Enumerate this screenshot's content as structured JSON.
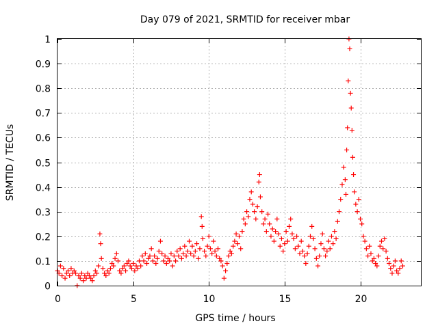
{
  "chart_data": {
    "type": "scatter",
    "title": "Day 079 of 2021, SRMTID for receiver mbar",
    "xlabel": "GPS time / hours",
    "ylabel": "SRMTID / TECUs",
    "xlim": [
      0,
      24
    ],
    "ylim": [
      0,
      1
    ],
    "xticks": [
      0,
      5,
      10,
      15,
      20
    ],
    "yticks": [
      0,
      0.1,
      0.2,
      0.3,
      0.4,
      0.5,
      0.6,
      0.7,
      0.8,
      0.9,
      1
    ],
    "grid": true,
    "marker": "+",
    "color": "#ff0000",
    "series": [
      {
        "name": "SRMTID",
        "points": [
          [
            0.0,
            0.06
          ],
          [
            0.1,
            0.05
          ],
          [
            0.2,
            0.08
          ],
          [
            0.3,
            0.04
          ],
          [
            0.4,
            0.07
          ],
          [
            0.5,
            0.03
          ],
          [
            0.6,
            0.05
          ],
          [
            0.7,
            0.06
          ],
          [
            0.8,
            0.04
          ],
          [
            0.9,
            0.07
          ],
          [
            1.0,
            0.05
          ],
          [
            1.1,
            0.06
          ],
          [
            1.2,
            0.05
          ],
          [
            1.3,
            0.0
          ],
          [
            1.4,
            0.04
          ],
          [
            1.5,
            0.03
          ],
          [
            1.6,
            0.05
          ],
          [
            1.7,
            0.02
          ],
          [
            1.8,
            0.04
          ],
          [
            1.9,
            0.03
          ],
          [
            2.0,
            0.05
          ],
          [
            2.1,
            0.04
          ],
          [
            2.2,
            0.03
          ],
          [
            2.3,
            0.02
          ],
          [
            2.4,
            0.04
          ],
          [
            2.5,
            0.06
          ],
          [
            2.6,
            0.05
          ],
          [
            2.7,
            0.08
          ],
          [
            2.8,
            0.21
          ],
          [
            2.85,
            0.17
          ],
          [
            2.9,
            0.11
          ],
          [
            3.0,
            0.07
          ],
          [
            3.1,
            0.05
          ],
          [
            3.2,
            0.04
          ],
          [
            3.3,
            0.06
          ],
          [
            3.4,
            0.05
          ],
          [
            3.5,
            0.07
          ],
          [
            3.6,
            0.09
          ],
          [
            3.7,
            0.08
          ],
          [
            3.8,
            0.11
          ],
          [
            3.9,
            0.13
          ],
          [
            4.0,
            0.1
          ],
          [
            4.1,
            0.06
          ],
          [
            4.2,
            0.05
          ],
          [
            4.3,
            0.07
          ],
          [
            4.4,
            0.08
          ],
          [
            4.5,
            0.06
          ],
          [
            4.6,
            0.09
          ],
          [
            4.7,
            0.1
          ],
          [
            4.8,
            0.08
          ],
          [
            4.9,
            0.07
          ],
          [
            5.0,
            0.09
          ],
          [
            5.1,
            0.06
          ],
          [
            5.2,
            0.08
          ],
          [
            5.3,
            0.07
          ],
          [
            5.4,
            0.1
          ],
          [
            5.5,
            0.08
          ],
          [
            5.6,
            0.12
          ],
          [
            5.7,
            0.1
          ],
          [
            5.8,
            0.13
          ],
          [
            5.9,
            0.09
          ],
          [
            6.0,
            0.11
          ],
          [
            6.1,
            0.12
          ],
          [
            6.2,
            0.15
          ],
          [
            6.3,
            0.1
          ],
          [
            6.4,
            0.12
          ],
          [
            6.5,
            0.09
          ],
          [
            6.6,
            0.11
          ],
          [
            6.7,
            0.14
          ],
          [
            6.8,
            0.18
          ],
          [
            6.9,
            0.13
          ],
          [
            7.0,
            0.1
          ],
          [
            7.1,
            0.12
          ],
          [
            7.2,
            0.09
          ],
          [
            7.3,
            0.11
          ],
          [
            7.4,
            0.1
          ],
          [
            7.5,
            0.13
          ],
          [
            7.6,
            0.08
          ],
          [
            7.7,
            0.12
          ],
          [
            7.8,
            0.1
          ],
          [
            7.9,
            0.14
          ],
          [
            8.0,
            0.12
          ],
          [
            8.1,
            0.15
          ],
          [
            8.2,
            0.11
          ],
          [
            8.3,
            0.13
          ],
          [
            8.4,
            0.16
          ],
          [
            8.5,
            0.12
          ],
          [
            8.6,
            0.14
          ],
          [
            8.7,
            0.18
          ],
          [
            8.8,
            0.13
          ],
          [
            8.9,
            0.16
          ],
          [
            9.0,
            0.12
          ],
          [
            9.1,
            0.14
          ],
          [
            9.2,
            0.17
          ],
          [
            9.3,
            0.11
          ],
          [
            9.4,
            0.15
          ],
          [
            9.5,
            0.28
          ],
          [
            9.55,
            0.24
          ],
          [
            9.6,
            0.19
          ],
          [
            9.7,
            0.14
          ],
          [
            9.8,
            0.12
          ],
          [
            9.9,
            0.16
          ],
          [
            10.0,
            0.2
          ],
          [
            10.1,
            0.15
          ],
          [
            10.2,
            0.13
          ],
          [
            10.3,
            0.18
          ],
          [
            10.4,
            0.14
          ],
          [
            10.5,
            0.12
          ],
          [
            10.6,
            0.15
          ],
          [
            10.7,
            0.11
          ],
          [
            10.8,
            0.1
          ],
          [
            10.9,
            0.08
          ],
          [
            11.0,
            0.03
          ],
          [
            11.1,
            0.06
          ],
          [
            11.2,
            0.09
          ],
          [
            11.3,
            0.12
          ],
          [
            11.4,
            0.14
          ],
          [
            11.5,
            0.13
          ],
          [
            11.6,
            0.16
          ],
          [
            11.7,
            0.18
          ],
          [
            11.8,
            0.21
          ],
          [
            11.9,
            0.17
          ],
          [
            12.0,
            0.2
          ],
          [
            12.1,
            0.15
          ],
          [
            12.2,
            0.22
          ],
          [
            12.3,
            0.27
          ],
          [
            12.4,
            0.25
          ],
          [
            12.5,
            0.3
          ],
          [
            12.6,
            0.28
          ],
          [
            12.7,
            0.35
          ],
          [
            12.8,
            0.38
          ],
          [
            12.9,
            0.33
          ],
          [
            13.0,
            0.3
          ],
          [
            13.1,
            0.27
          ],
          [
            13.2,
            0.32
          ],
          [
            13.3,
            0.42
          ],
          [
            13.35,
            0.45
          ],
          [
            13.4,
            0.36
          ],
          [
            13.5,
            0.3
          ],
          [
            13.6,
            0.25
          ],
          [
            13.7,
            0.27
          ],
          [
            13.8,
            0.22
          ],
          [
            13.9,
            0.29
          ],
          [
            14.0,
            0.25
          ],
          [
            14.1,
            0.2
          ],
          [
            14.2,
            0.23
          ],
          [
            14.3,
            0.18
          ],
          [
            14.4,
            0.22
          ],
          [
            14.5,
            0.27
          ],
          [
            14.6,
            0.21
          ],
          [
            14.7,
            0.16
          ],
          [
            14.8,
            0.19
          ],
          [
            14.9,
            0.14
          ],
          [
            15.0,
            0.17
          ],
          [
            15.1,
            0.22
          ],
          [
            15.2,
            0.18
          ],
          [
            15.3,
            0.24
          ],
          [
            15.4,
            0.27
          ],
          [
            15.5,
            0.21
          ],
          [
            15.6,
            0.19
          ],
          [
            15.7,
            0.15
          ],
          [
            15.8,
            0.2
          ],
          [
            15.9,
            0.16
          ],
          [
            16.0,
            0.13
          ],
          [
            16.1,
            0.18
          ],
          [
            16.2,
            0.14
          ],
          [
            16.3,
            0.12
          ],
          [
            16.4,
            0.09
          ],
          [
            16.5,
            0.13
          ],
          [
            16.6,
            0.16
          ],
          [
            16.7,
            0.2
          ],
          [
            16.8,
            0.24
          ],
          [
            16.9,
            0.19
          ],
          [
            17.0,
            0.15
          ],
          [
            17.1,
            0.11
          ],
          [
            17.2,
            0.08
          ],
          [
            17.3,
            0.12
          ],
          [
            17.4,
            0.17
          ],
          [
            17.5,
            0.21
          ],
          [
            17.6,
            0.15
          ],
          [
            17.7,
            0.12
          ],
          [
            17.8,
            0.14
          ],
          [
            17.9,
            0.18
          ],
          [
            18.0,
            0.15
          ],
          [
            18.1,
            0.2
          ],
          [
            18.2,
            0.17
          ],
          [
            18.3,
            0.22
          ],
          [
            18.4,
            0.19
          ],
          [
            18.5,
            0.26
          ],
          [
            18.6,
            0.3
          ],
          [
            18.7,
            0.35
          ],
          [
            18.8,
            0.41
          ],
          [
            18.9,
            0.48
          ],
          [
            19.0,
            0.43
          ],
          [
            19.05,
            0.37
          ],
          [
            19.1,
            0.55
          ],
          [
            19.15,
            0.64
          ],
          [
            19.2,
            0.83
          ],
          [
            19.25,
            1.0
          ],
          [
            19.3,
            0.96
          ],
          [
            19.35,
            0.78
          ],
          [
            19.4,
            0.72
          ],
          [
            19.45,
            0.63
          ],
          [
            19.5,
            0.52
          ],
          [
            19.55,
            0.45
          ],
          [
            19.6,
            0.38
          ],
          [
            19.7,
            0.33
          ],
          [
            19.8,
            0.3
          ],
          [
            19.9,
            0.35
          ],
          [
            20.0,
            0.27
          ],
          [
            20.1,
            0.25
          ],
          [
            20.2,
            0.2
          ],
          [
            20.3,
            0.18
          ],
          [
            20.4,
            0.15
          ],
          [
            20.5,
            0.12
          ],
          [
            20.6,
            0.16
          ],
          [
            20.7,
            0.13
          ],
          [
            20.8,
            0.1
          ],
          [
            20.9,
            0.11
          ],
          [
            21.0,
            0.09
          ],
          [
            21.1,
            0.08
          ],
          [
            21.2,
            0.12
          ],
          [
            21.3,
            0.16
          ],
          [
            21.4,
            0.18
          ],
          [
            21.5,
            0.15
          ],
          [
            21.6,
            0.19
          ],
          [
            21.7,
            0.14
          ],
          [
            21.8,
            0.11
          ],
          [
            21.9,
            0.09
          ],
          [
            22.0,
            0.07
          ],
          [
            22.1,
            0.05
          ],
          [
            22.2,
            0.08
          ],
          [
            22.3,
            0.1
          ],
          [
            22.4,
            0.06
          ],
          [
            22.5,
            0.05
          ],
          [
            22.6,
            0.07
          ],
          [
            22.7,
            0.1
          ],
          [
            22.8,
            0.08
          ]
        ]
      }
    ]
  }
}
